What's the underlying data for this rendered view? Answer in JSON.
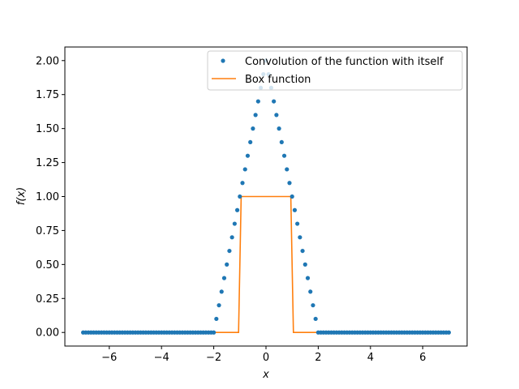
{
  "chart_data": {
    "type": "line",
    "xlabel": "x",
    "ylabel": "f(x)",
    "xlim": [
      -7.7,
      7.7
    ],
    "ylim": [
      -0.1,
      2.1
    ],
    "xticks": [
      -6,
      -4,
      -2,
      0,
      2,
      4,
      6
    ],
    "xtick_labels": [
      "−6",
      "−4",
      "−2",
      "0",
      "2",
      "4",
      "6"
    ],
    "yticks": [
      0,
      0.25,
      0.5,
      0.75,
      1.0,
      1.25,
      1.5,
      1.75,
      2.0
    ],
    "ytick_labels": [
      "0.00",
      "0.25",
      "0.50",
      "0.75",
      "1.00",
      "1.25",
      "1.50",
      "1.75",
      "2.00"
    ],
    "grid": false,
    "legend_position": "top-right",
    "series": [
      {
        "name": "Convolution of the function with itself",
        "style": "dots",
        "color": "#1f77b4",
        "x_range": [
          -7,
          7
        ],
        "step": 0.1,
        "shape": "triangle",
        "support": [
          -2,
          2
        ],
        "peak": 2.0
      },
      {
        "name": "Box function",
        "style": "line",
        "color": "#ff7f0e",
        "x": [
          -7,
          -1.05,
          -0.95,
          0.95,
          1.05,
          7
        ],
        "y": [
          0,
          0,
          1,
          1,
          0,
          0
        ]
      }
    ]
  }
}
